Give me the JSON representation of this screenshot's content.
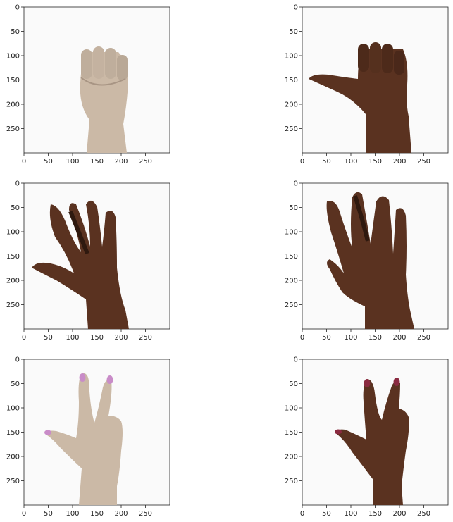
{
  "figure": {
    "panels": [
      {
        "id": "p1",
        "skin": "light",
        "gesture": "rock",
        "xticks": [
          "0",
          "50",
          "100",
          "150",
          "200",
          "250"
        ],
        "yticks": [
          "0",
          "50",
          "100",
          "150",
          "200",
          "250"
        ]
      },
      {
        "id": "p2",
        "skin": "dark",
        "gesture": "rock-thumb-out",
        "xticks": [
          "0",
          "50",
          "100",
          "150",
          "200",
          "250"
        ],
        "yticks": [
          "0",
          "50",
          "100",
          "150",
          "200",
          "250"
        ]
      },
      {
        "id": "p3",
        "skin": "dark",
        "gesture": "paper",
        "xticks": [
          "0",
          "50",
          "100",
          "150",
          "200",
          "250"
        ],
        "yticks": [
          "0",
          "50",
          "100",
          "150",
          "200",
          "250"
        ]
      },
      {
        "id": "p4",
        "skin": "dark",
        "gesture": "paper",
        "xticks": [
          "0",
          "50",
          "100",
          "150",
          "200",
          "250"
        ],
        "yticks": [
          "0",
          "50",
          "100",
          "150",
          "200",
          "250"
        ]
      },
      {
        "id": "p5",
        "skin": "light",
        "gesture": "scissors",
        "xticks": [
          "0",
          "50",
          "100",
          "150",
          "200",
          "250"
        ],
        "yticks": [
          "0",
          "50",
          "100",
          "150",
          "200",
          "250"
        ]
      },
      {
        "id": "p6",
        "skin": "dark",
        "gesture": "scissors",
        "xticks": [
          "0",
          "50",
          "100",
          "150",
          "200",
          "250"
        ],
        "yticks": [
          "0",
          "50",
          "100",
          "150",
          "200",
          "250"
        ]
      }
    ],
    "colors": {
      "light_skin": "#cbb9a6",
      "light_skin_shade": "#a89584",
      "dark_skin": "#5a3220",
      "dark_skin_shade": "#3a1f14",
      "nail_pink": "#c98cc8",
      "nail_red": "#8a2a40",
      "background": "#fafafa"
    }
  }
}
